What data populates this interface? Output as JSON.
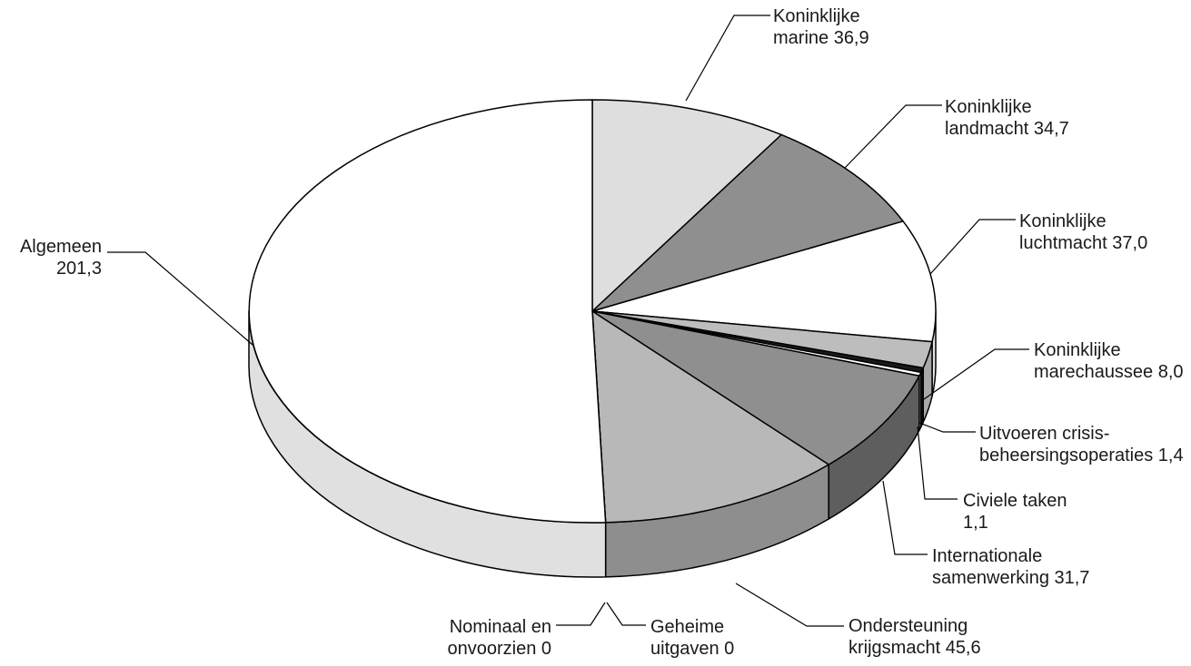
{
  "chart_data": {
    "type": "pie",
    "style": "3d-pie",
    "title": "",
    "legend": "none",
    "slices": [
      {
        "label": "Koninklijke marine 36,9",
        "label_lines": [
          "Koninklijke",
          "marine 36,9"
        ],
        "value": 36.9,
        "color": "#dedede"
      },
      {
        "label": "Koninklijke landmacht 34,7",
        "label_lines": [
          "Koninklijke",
          "landmacht 34,7"
        ],
        "value": 34.7,
        "color": "#8f8f8f"
      },
      {
        "label": "Koninklijke luchtmacht 37,0",
        "label_lines": [
          "Koninklijke",
          "luchtmacht 37,0"
        ],
        "value": 37.0,
        "color": "#ffffff"
      },
      {
        "label": "Koninklijke marechaussee 8,0",
        "label_lines": [
          "Koninklijke",
          "marechaussee 8,0"
        ],
        "value": 8.0,
        "color": "#bdbdbd"
      },
      {
        "label": "Uitvoeren crisis-beheersingsoperaties 1,4",
        "label_lines": [
          "Uitvoeren crisis-",
          "beheersingsoperaties 1,4"
        ],
        "value": 1.4,
        "color": "#1a1a1a"
      },
      {
        "label": "Civiele taken 1,1",
        "label_lines": [
          "Civiele taken",
          "1,1"
        ],
        "value": 1.1,
        "color": "#ffffff"
      },
      {
        "label": "Internationale samenwerking 31,7",
        "label_lines": [
          "Internationale",
          "samenwerking 31,7"
        ],
        "value": 31.7,
        "color": "#8f8f8f"
      },
      {
        "label": "Ondersteuning krijgsmacht 45,6",
        "label_lines": [
          "Ondersteuning",
          "krijgsmacht 45,6"
        ],
        "value": 45.6,
        "color": "#b8b8b8"
      },
      {
        "label": "Geheime uitgaven 0",
        "label_lines": [
          "Geheime",
          "uitgaven 0"
        ],
        "value": 0,
        "color": "#ffffff"
      },
      {
        "label": "Nominaal en onvoorzien 0",
        "label_lines": [
          "Nominaal en",
          "onvoorzien 0"
        ],
        "value": 0,
        "color": "#ffffff"
      },
      {
        "label": "Algemeen 201,3",
        "label_lines": [
          "Algemeen",
          "201,3"
        ],
        "value": 201.3,
        "color": "#ffffff"
      }
    ]
  }
}
